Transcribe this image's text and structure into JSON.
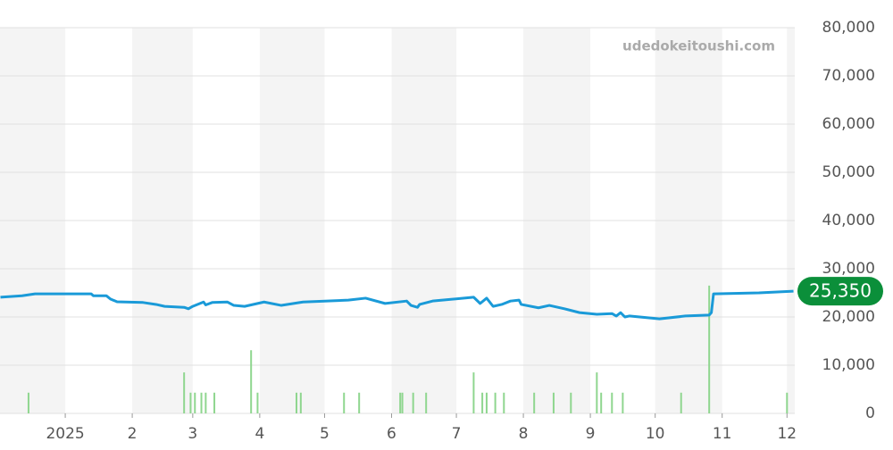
{
  "chart_data": {
    "type": "line",
    "watermark": "udedokeitoushi.com",
    "xlim": [
      -30.2,
      337.6
    ],
    "ylim": [
      0,
      80000
    ],
    "xticks": [
      {
        "value": 0,
        "label": "2025"
      },
      {
        "value": 31,
        "label": "2"
      },
      {
        "value": 59,
        "label": "3"
      },
      {
        "value": 90,
        "label": "4"
      },
      {
        "value": 120,
        "label": "5"
      },
      {
        "value": 151,
        "label": "6"
      },
      {
        "value": 181,
        "label": "7"
      },
      {
        "value": 212,
        "label": "8"
      },
      {
        "value": 243,
        "label": "9"
      },
      {
        "value": 273,
        "label": "10"
      },
      {
        "value": 304,
        "label": "11"
      },
      {
        "value": 334,
        "label": "12"
      }
    ],
    "yticks": [
      0,
      {
        "value": 10000,
        "label": "10,000"
      },
      {
        "value": 20000,
        "label": "20,000"
      },
      {
        "value": 30000,
        "label": "30,000"
      },
      {
        "value": 40000,
        "label": "40,000"
      },
      {
        "value": 50000,
        "label": "50,000"
      },
      {
        "value": 60000,
        "label": "60,000"
      },
      {
        "value": 70000,
        "label": "70,000"
      },
      {
        "value": 80000,
        "label": "80,000"
      }
    ],
    "grid": true,
    "band_color": "#f4f4f4",
    "line": {
      "color": "#1a9ad8",
      "x": [
        -30,
        -20,
        -14,
        12,
        13,
        19,
        21,
        24,
        36,
        42,
        46,
        55,
        57,
        59,
        64,
        65,
        68,
        75,
        78,
        83,
        92,
        100,
        110,
        131,
        139,
        148,
        158,
        160,
        163,
        164,
        170,
        189,
        192,
        195,
        198,
        202,
        206,
        210,
        211,
        219,
        224,
        231,
        238,
        246,
        253,
        255,
        257,
        259,
        261,
        275,
        287,
        298,
        299,
        300,
        321,
        337
      ],
      "values": [
        24100,
        24400,
        24800,
        24800,
        24400,
        24400,
        23700,
        23150,
        23000,
        22600,
        22200,
        22000,
        21700,
        22200,
        23100,
        22500,
        23000,
        23100,
        22400,
        22200,
        23100,
        22400,
        23100,
        23500,
        23900,
        22800,
        23300,
        22400,
        22000,
        22600,
        23300,
        24100,
        22800,
        23900,
        22200,
        22600,
        23300,
        23500,
        22600,
        21900,
        22400,
        21700,
        20900,
        20550,
        20700,
        20200,
        20900,
        20000,
        20200,
        19600,
        20200,
        20400,
        20900,
        24800,
        25000,
        25350
      ]
    },
    "volume": {
      "color": "#8fd68f",
      "x": [
        -17,
        55,
        58,
        60,
        63,
        65,
        69,
        86,
        89,
        107,
        109,
        129,
        136,
        155,
        156,
        161,
        167,
        189,
        193,
        195,
        199,
        203,
        217,
        226,
        234,
        246,
        248,
        253,
        258,
        285,
        298,
        334
      ],
      "values": [
        4300,
        8500,
        4300,
        4300,
        4300,
        4300,
        4300,
        13100,
        4300,
        4300,
        4300,
        4300,
        4300,
        4300,
        4300,
        4300,
        4300,
        8500,
        4300,
        4300,
        4300,
        4300,
        4300,
        4300,
        4300,
        8500,
        4300,
        4300,
        4300,
        4300,
        26500,
        4300
      ]
    },
    "current": {
      "value": 25350,
      "label": "25,350",
      "color": "#0b8f3a"
    }
  }
}
